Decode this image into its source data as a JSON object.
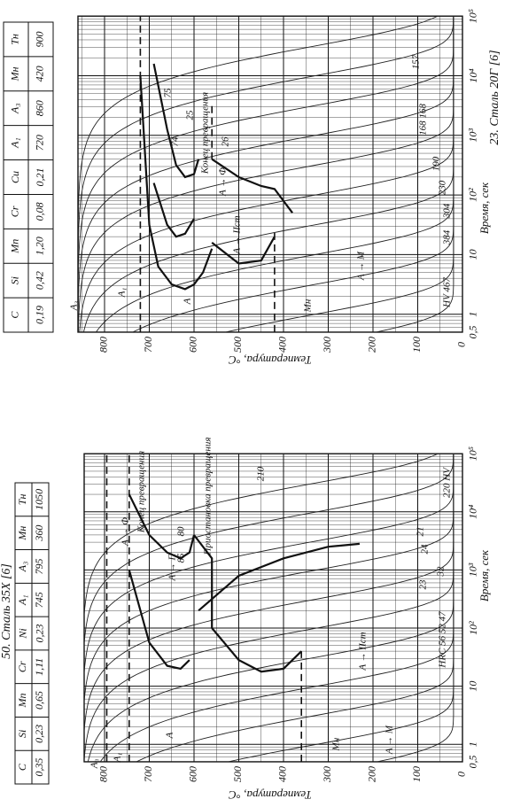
{
  "panels": [
    {
      "title": "23. Сталь 20Г [6]",
      "composition": {
        "headers": [
          "C",
          "Si",
          "Mn",
          "Cr",
          "Cu",
          "A₁",
          "A₃",
          "Mн",
          "Tн"
        ],
        "values": [
          "0,19",
          "0,42",
          "1,20",
          "0,08",
          "0,21",
          "720",
          "860",
          "420",
          "900"
        ]
      },
      "y_axis_label": "Температура, °C",
      "x_axis_label": "Время, сек",
      "temperature_ticks": [
        "0",
        "100",
        "200",
        "300",
        "400",
        "500",
        "600",
        "700",
        "800"
      ],
      "time_ticks": [
        "0,5",
        "1",
        "10",
        "10²",
        "10³",
        "10⁴",
        "10⁵"
      ],
      "annotations": [
        "A₃",
        "A₁",
        "A",
        "Mн",
        "A → Ф",
        "A → IIст",
        "A → M",
        "Конец превращения",
        "HV 467",
        "384",
        "304",
        "230",
        "190",
        "168 168",
        "157",
        "75",
        "74",
        "26",
        "25"
      ]
    },
    {
      "title": "50. Сталь 35Х [6]",
      "composition": {
        "headers": [
          "C",
          "Si",
          "Mn",
          "Cr",
          "Ni",
          "A₁",
          "A₃",
          "Mн",
          "Tн"
        ],
        "values": [
          "0,35",
          "0,23",
          "0,65",
          "1,11",
          "0,23",
          "745",
          "795",
          "360",
          "1050"
        ]
      },
      "y_axis_label": "Температура, °C",
      "x_axis_label": "Время, сек",
      "temperature_ticks": [
        "0",
        "100",
        "200",
        "300",
        "400",
        "500",
        "600",
        "700",
        "800"
      ],
      "time_ticks": [
        "0,5",
        "1",
        "10",
        "10²",
        "10³",
        "10⁴",
        "10⁵"
      ],
      "annotations": [
        "A₃",
        "A₁",
        "A",
        "Mн",
        "A → M",
        "A → IIст",
        "A → П",
        "A → Ф",
        "Конец превращения",
        "Приостановка превращения",
        "HRC 56 52 47",
        "32",
        "23",
        "24",
        "21",
        "220 HV",
        "210",
        "85",
        "80"
      ]
    }
  ]
}
